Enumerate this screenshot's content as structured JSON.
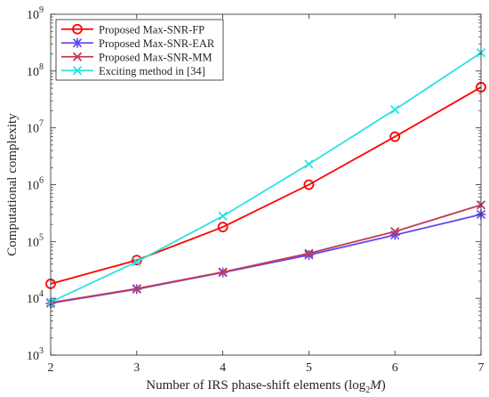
{
  "chart_data": {
    "type": "line",
    "title": "",
    "xlabel": "Number of IRS phase-shift elements (log",
    "xlabel_sub": "2",
    "xlabel_var": "M",
    "xlabel_close": ")",
    "ylabel": "Computational complexity",
    "x": [
      2,
      3,
      4,
      5,
      6,
      7
    ],
    "x_ticks": [
      "2",
      "3",
      "4",
      "5",
      "6",
      "7"
    ],
    "xlim": [
      2,
      7
    ],
    "y_scale": "log",
    "ylim": [
      1000,
      1000000000
    ],
    "y_ticks": [
      {
        "base": "10",
        "exp": "3"
      },
      {
        "base": "10",
        "exp": "4"
      },
      {
        "base": "10",
        "exp": "5"
      },
      {
        "base": "10",
        "exp": "6"
      },
      {
        "base": "10",
        "exp": "7"
      },
      {
        "base": "10",
        "exp": "8"
      },
      {
        "base": "10",
        "exp": "9"
      }
    ],
    "grid": false,
    "legend_position": "top-left",
    "series": [
      {
        "name": "Proposed Max-SNR-FP",
        "color": "#ff0000",
        "marker": "circle",
        "values": [
          18000,
          47000,
          180000,
          1000000,
          7000000,
          52000000
        ]
      },
      {
        "name": "Proposed Max-SNR-EAR",
        "color": "#6347f2",
        "marker": "asterisk",
        "values": [
          8200,
          14500,
          28500,
          58000,
          130000,
          300000
        ]
      },
      {
        "name": "Proposed Max-SNR-MM",
        "color": "#c23b55",
        "marker": "x",
        "values": [
          8400,
          14800,
          29000,
          62000,
          150000,
          440000
        ]
      },
      {
        "name": "Exciting method in [34]",
        "color": "#2de0e0",
        "marker": "x",
        "values": [
          8600,
          44000,
          280000,
          2300000,
          21000000,
          210000000
        ]
      }
    ]
  }
}
